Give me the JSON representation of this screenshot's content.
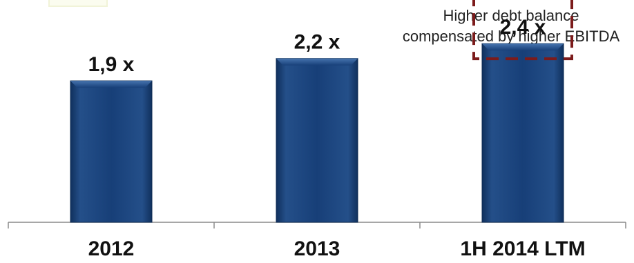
{
  "chart_data": {
    "type": "bar",
    "categories": [
      "2012",
      "2013",
      "1H 2014 LTM"
    ],
    "values": [
      1.9,
      2.2,
      2.4
    ],
    "data_labels": [
      "1,9 x",
      "2,2 x",
      "2,4 x"
    ],
    "title": "",
    "xlabel": "",
    "ylabel": "",
    "ylim": [
      0,
      2.8
    ],
    "grid": false,
    "legend": "none",
    "colors": {
      "bar": "#173f78",
      "bar_dark": "#0f2d58",
      "bar_light": "#2a5b98",
      "highlight_box": "#7c1b1b",
      "axis": "#8a8a8a",
      "text": "#111111"
    },
    "annotation": {
      "lines": [
        "Higher debt balance",
        "compensated by higher EBITDA"
      ],
      "target_category": "1H 2014 LTM"
    }
  }
}
